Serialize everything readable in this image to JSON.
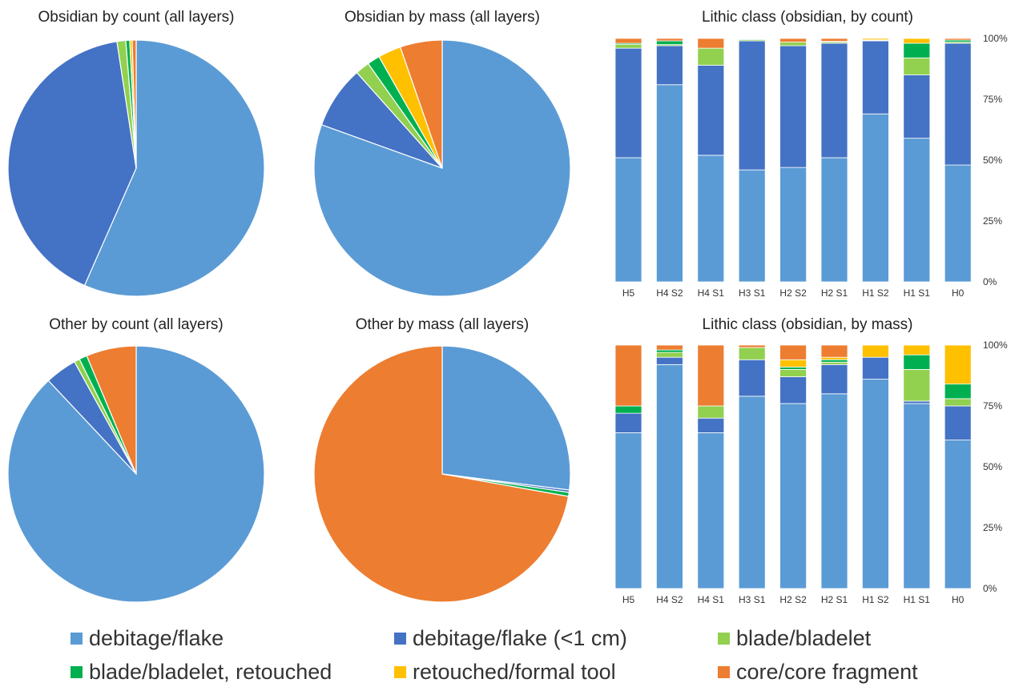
{
  "categories_colors": {
    "debitage/flake": "#5b9bd5",
    "debitage/flake (<1 cm)": "#4472c4",
    "blade/bladelet": "#92d050",
    "blade/bladelet, retouched": "#00b050",
    "retouched/formal tool": "#ffc000",
    "core/core fragment": "#ed7d31"
  },
  "legend": {
    "items": [
      {
        "label": "debitage/flake",
        "color": "#5b9bd5"
      },
      {
        "label": "debitage/flake (<1 cm)",
        "color": "#4472c4"
      },
      {
        "label": "blade/bladelet",
        "color": "#92d050"
      },
      {
        "label": "blade/bladelet, retouched",
        "color": "#00b050"
      },
      {
        "label": "retouched/formal tool",
        "color": "#ffc000"
      },
      {
        "label": "core/core fragment",
        "color": "#ed7d31"
      }
    ]
  },
  "chart_data": [
    {
      "type": "pie",
      "title": "Obsidian by count (all layers)",
      "start": "top, clockwise",
      "labels": [
        "debitage/flake",
        "debitage/flake (<1 cm)",
        "blade/bladelet",
        "blade/bladelet, retouched",
        "retouched/formal tool",
        "core/core fragment"
      ],
      "values": [
        56.6,
        41.0,
        1.1,
        0.5,
        0.3,
        0.5
      ]
    },
    {
      "type": "pie",
      "title": "Obsidian by mass (all layers)",
      "start": "top, clockwise",
      "labels": [
        "debitage/flake",
        "debitage/flake (<1 cm)",
        "blade/bladelet",
        "blade/bladelet, retouched",
        "retouched/formal tool",
        "core/core fragment"
      ],
      "values": [
        80.5,
        7.9,
        1.8,
        1.6,
        2.9,
        5.3
      ]
    },
    {
      "type": "bar",
      "stacked": true,
      "title": "Lithic class (obsidian, by count)",
      "categories": [
        "H5",
        "H4 S2",
        "H4 S1",
        "H3 S1",
        "H2 S2",
        "H2 S1",
        "H1 S2",
        "H1 S1",
        "H0"
      ],
      "ylim": [
        0,
        100
      ],
      "yticks": [
        "0%",
        "25%",
        "50%",
        "75%",
        "100%"
      ],
      "series": [
        {
          "name": "debitage/flake",
          "values": [
            51,
            81,
            52,
            46,
            47,
            51,
            69,
            59,
            48
          ]
        },
        {
          "name": "debitage/flake (<1 cm)",
          "values": [
            45,
            16,
            37,
            53,
            50,
            47,
            30,
            26,
            50
          ]
        },
        {
          "name": "blade/bladelet",
          "values": [
            1.5,
            0.5,
            7,
            0.5,
            1.5,
            0.5,
            0.2,
            7,
            0.5
          ]
        },
        {
          "name": "blade/bladelet, retouched",
          "values": [
            0.5,
            1.5,
            0,
            0.3,
            0,
            0.3,
            0.2,
            6,
            0.8
          ]
        },
        {
          "name": "retouched/formal tool",
          "values": [
            0,
            0,
            0,
            0,
            0,
            0,
            0.6,
            2,
            0
          ]
        },
        {
          "name": "core/core fragment",
          "values": [
            2,
            1,
            4,
            0.2,
            1.5,
            1.2,
            0,
            0,
            0.7
          ]
        }
      ]
    },
    {
      "type": "pie",
      "title": "Other by count (all layers)",
      "start": "top, clockwise",
      "labels": [
        "debitage/flake",
        "debitage/flake (<1 cm)",
        "blade/bladelet",
        "blade/bladelet, retouched",
        "retouched/formal tool",
        "core/core fragment"
      ],
      "values": [
        88.0,
        4.0,
        0.7,
        1.0,
        0.0,
        6.3
      ]
    },
    {
      "type": "pie",
      "title": "Other by mass (all layers)",
      "start": "top, clockwise",
      "labels": [
        "debitage/flake",
        "debitage/flake (<1 cm)",
        "blade/bladelet",
        "blade/bladelet, retouched",
        "retouched/formal tool",
        "core/core fragment"
      ],
      "values": [
        27.0,
        0.3,
        0.0,
        0.5,
        0.0,
        72.2
      ]
    },
    {
      "type": "bar",
      "stacked": true,
      "title": "Lithic class (obsidian, by mass)",
      "categories": [
        "H5",
        "H4 S2",
        "H4 S1",
        "H3 S1",
        "H2 S2",
        "H2 S1",
        "H1 S2",
        "H1 S1",
        "H0"
      ],
      "ylim": [
        0,
        100
      ],
      "yticks": [
        "0%",
        "25%",
        "50%",
        "75%",
        "100%"
      ],
      "series": [
        {
          "name": "debitage/flake",
          "values": [
            64,
            92,
            64,
            79,
            76,
            80,
            86,
            76,
            61
          ]
        },
        {
          "name": "debitage/flake (<1 cm)",
          "values": [
            8,
            3,
            6,
            15,
            11,
            12,
            9,
            1,
            14
          ]
        },
        {
          "name": "blade/bladelet",
          "values": [
            0,
            2,
            5,
            5,
            3,
            1,
            0,
            13,
            3
          ]
        },
        {
          "name": "blade/bladelet, retouched",
          "values": [
            3,
            1,
            0,
            0,
            1,
            1,
            0,
            6,
            6
          ]
        },
        {
          "name": "retouched/formal tool",
          "values": [
            0,
            0,
            0,
            0,
            3,
            1,
            5,
            4,
            16
          ]
        },
        {
          "name": "core/core fragment",
          "values": [
            25,
            2,
            25,
            1,
            6,
            5,
            0,
            0,
            0
          ]
        }
      ]
    }
  ]
}
